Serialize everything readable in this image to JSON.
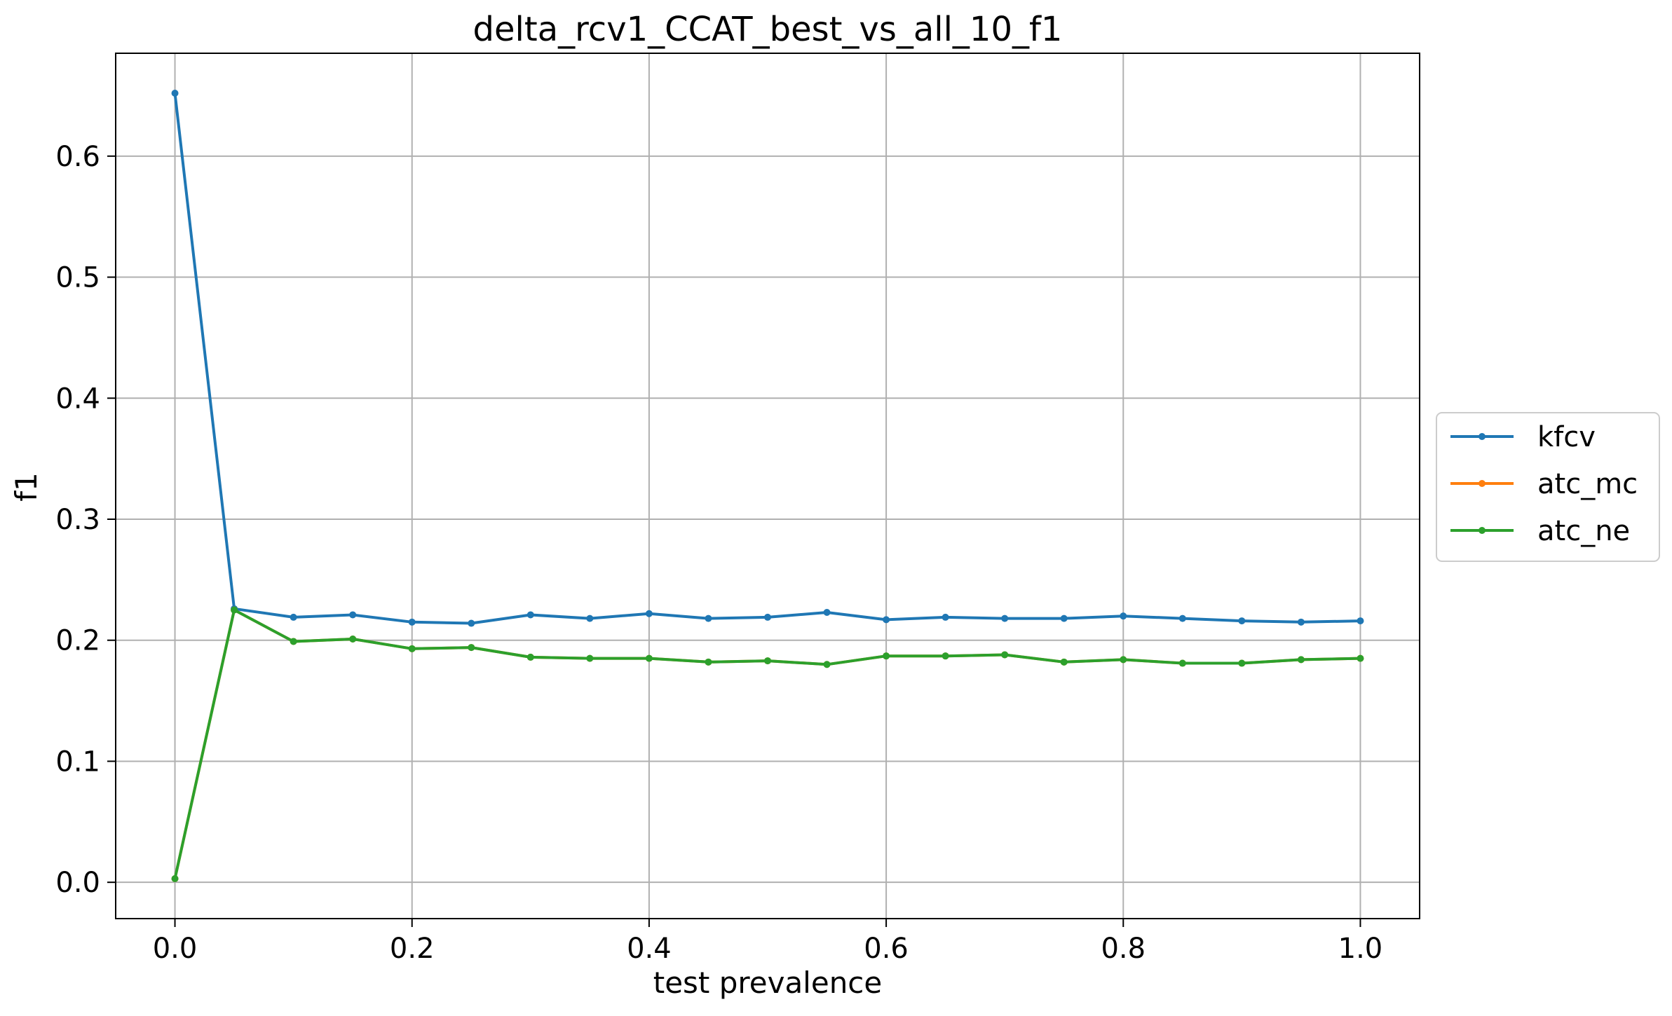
{
  "chart_data": {
    "type": "line",
    "title": "delta_rcv1_CCAT_best_vs_all_10_f1",
    "xlabel": "test prevalence",
    "ylabel": "f1",
    "xlim": [
      -0.05,
      1.05
    ],
    "ylim": [
      -0.03,
      0.685
    ],
    "xticks": [
      0.0,
      0.2,
      0.4,
      0.6,
      0.8,
      1.0
    ],
    "xtick_labels": [
      "0.0",
      "0.2",
      "0.4",
      "0.6",
      "0.8",
      "1.0"
    ],
    "yticks": [
      0.0,
      0.1,
      0.2,
      0.3,
      0.4,
      0.5,
      0.6
    ],
    "ytick_labels": [
      "0.0",
      "0.1",
      "0.2",
      "0.3",
      "0.4",
      "0.5",
      "0.6"
    ],
    "grid": true,
    "legend_position": "outside-right",
    "x": [
      0.0,
      0.05,
      0.1,
      0.15,
      0.2,
      0.25,
      0.3,
      0.35,
      0.4,
      0.45,
      0.5,
      0.55,
      0.6,
      0.65,
      0.7,
      0.75,
      0.8,
      0.85,
      0.9,
      0.95,
      1.0
    ],
    "series": [
      {
        "name": "kfcv",
        "color": "#1f77b4",
        "values": [
          0.652,
          0.226,
          0.219,
          0.221,
          0.215,
          0.214,
          0.221,
          0.218,
          0.222,
          0.218,
          0.219,
          0.223,
          0.217,
          0.219,
          0.218,
          0.218,
          0.22,
          0.218,
          0.216,
          0.215,
          0.216
        ]
      },
      {
        "name": "atc_mc",
        "color": "#ff7f0e",
        "values": [
          0.003,
          0.225,
          0.199,
          0.201,
          0.193,
          0.194,
          0.186,
          0.185,
          0.185,
          0.182,
          0.183,
          0.18,
          0.187,
          0.187,
          0.188,
          0.182,
          0.184,
          0.181,
          0.181,
          0.184,
          0.185
        ]
      },
      {
        "name": "atc_ne",
        "color": "#2ca02c",
        "values": [
          0.003,
          0.225,
          0.199,
          0.201,
          0.193,
          0.194,
          0.186,
          0.185,
          0.185,
          0.182,
          0.183,
          0.18,
          0.187,
          0.187,
          0.188,
          0.182,
          0.184,
          0.181,
          0.181,
          0.184,
          0.185
        ]
      }
    ]
  }
}
